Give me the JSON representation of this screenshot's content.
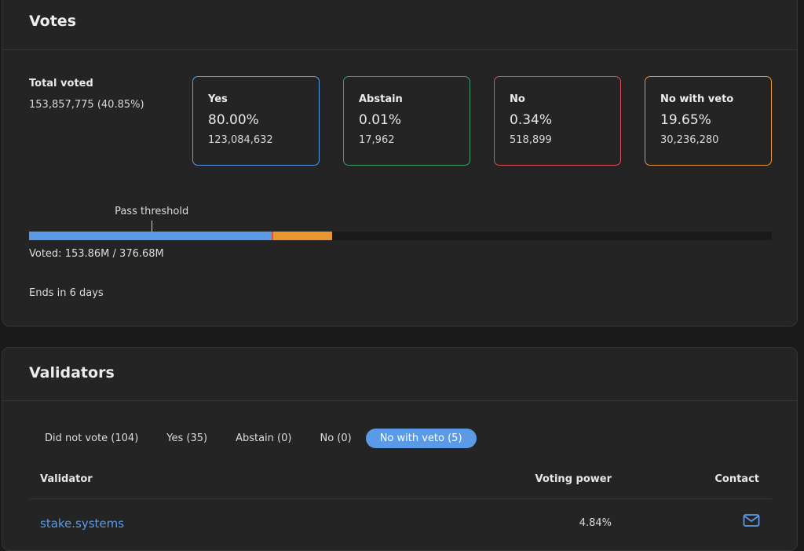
{
  "votes": {
    "title": "Votes",
    "total_label": "Total voted",
    "total_value": "153,857,775 (40.85%)",
    "options": [
      {
        "label": "Yes",
        "pct": "80.00%",
        "count": "123,084,632",
        "color": "#5a9ae6"
      },
      {
        "label": "Abstain",
        "pct": "0.01%",
        "count": "17,962",
        "color": "#3f9d6d"
      },
      {
        "label": "No",
        "pct": "0.34%",
        "count": "518,899",
        "color": "#d85058"
      },
      {
        "label": "No with veto",
        "pct": "19.65%",
        "count": "30,236,280",
        "color": "#e8962f"
      }
    ],
    "threshold_label": "Pass threshold",
    "threshold_fraction": 0.165,
    "voted_fraction": 0.4085,
    "voted_text": "Voted: 153.86M / 376.68M",
    "ends_text": "Ends in 6 days"
  },
  "validators": {
    "title": "Validators",
    "tabs": [
      {
        "label": "Did not vote (104)",
        "active": false
      },
      {
        "label": "Yes (35)",
        "active": false
      },
      {
        "label": "Abstain (0)",
        "active": false
      },
      {
        "label": "No (0)",
        "active": false
      },
      {
        "label": "No with veto (5)",
        "active": true
      }
    ],
    "columns": {
      "validator": "Validator",
      "power": "Voting power",
      "contact": "Contact"
    },
    "rows": [
      {
        "name": "stake.systems",
        "power": "4.84%",
        "contact_icon": "mail-icon"
      }
    ]
  }
}
